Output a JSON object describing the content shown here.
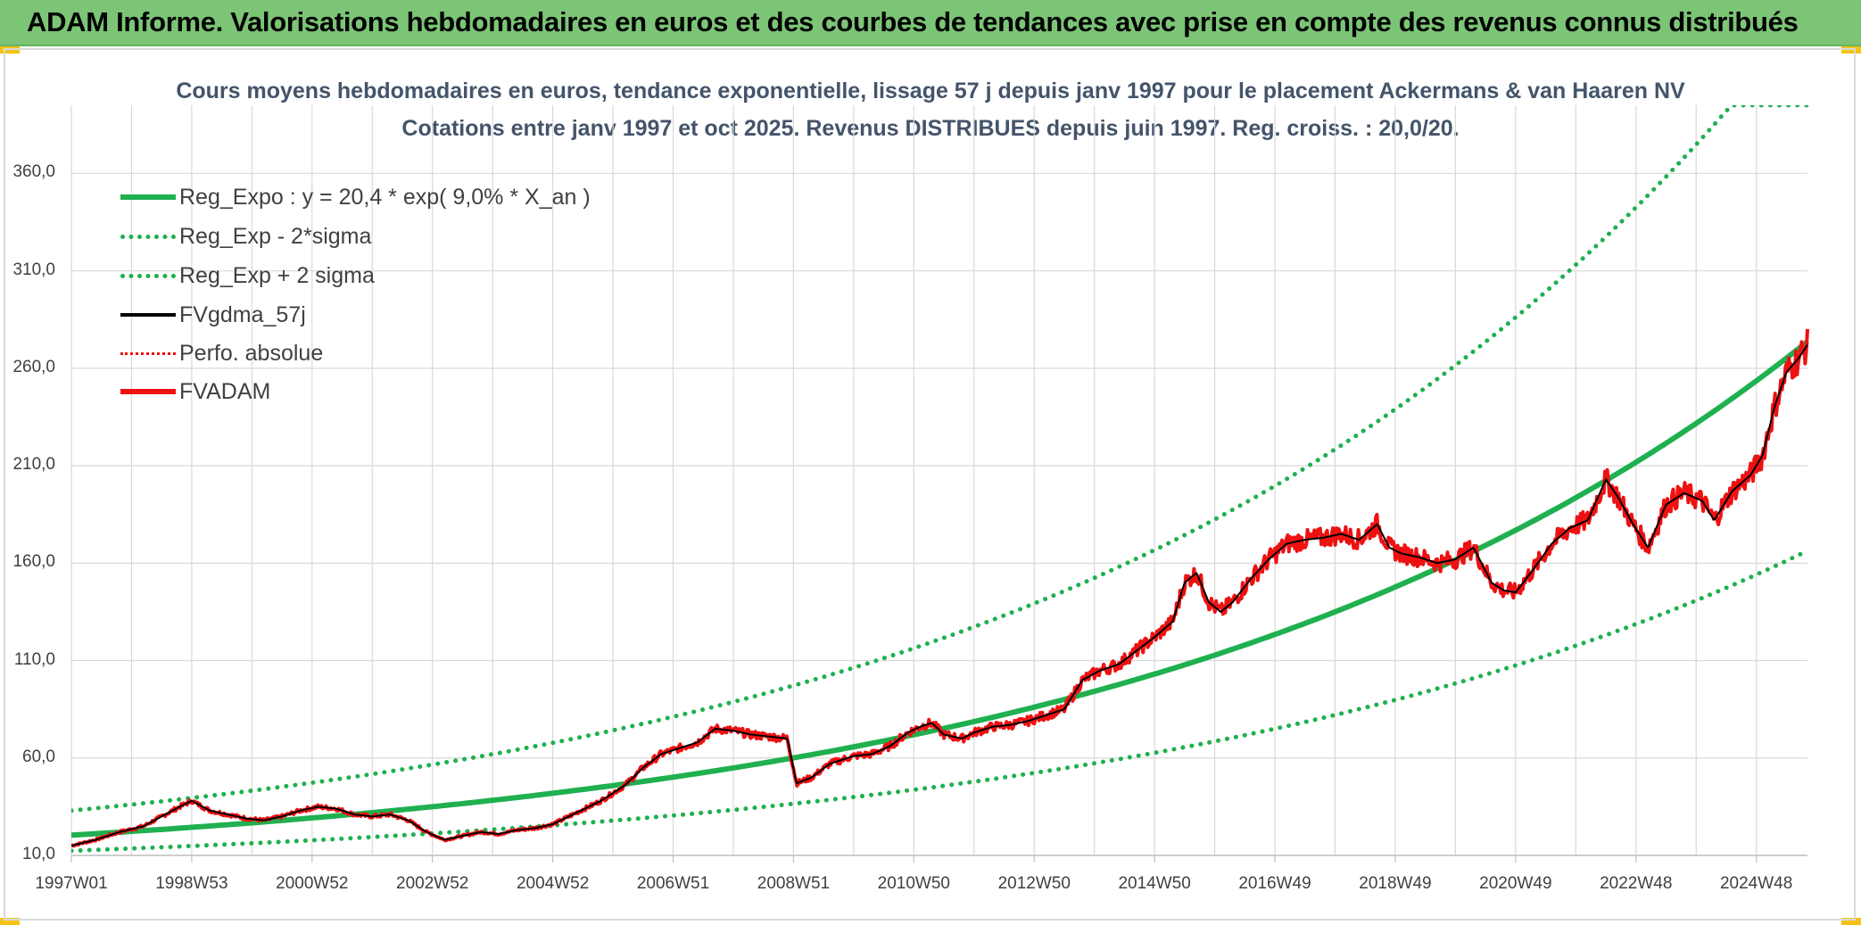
{
  "banner": {
    "title": "ADAM Informe. Valorisations hebdomadaires en euros et des courbes de tendances avec prise en compte des revenus connus distribués"
  },
  "colors": {
    "banner_bg": "#7cc576",
    "corner_accent": "#f2c314",
    "reg_expo": "#1fb04f",
    "fvadam": "#ee1111",
    "fvgdma": "#000000",
    "perfo": "#ee1111",
    "title_text": "#44546a"
  },
  "chart_data": {
    "type": "line",
    "title": "Cours moyens hebdomadaires en euros, tendance exponentielle, lissage 57 j depuis janv 1997 pour le placement Ackermans & van Haaren NV",
    "subtitle": "Cotations entre janv 1997 et oct 2025. Revenus DISTRIBUES depuis juin 1997. Reg. croiss. : 20,0/20.",
    "xlabel": "",
    "ylabel": "",
    "ylim": [
      10,
      395
    ],
    "xlim": [
      1997.0,
      2025.85
    ],
    "grid": true,
    "legend_position": "top-left",
    "y_ticks": [
      "10,0",
      "60,0",
      "110,0",
      "160,0",
      "210,0",
      "260,0",
      "310,0",
      "360,0"
    ],
    "x_ticks": [
      {
        "label": "1997W01",
        "x": 1997.0
      },
      {
        "label": "1998W53",
        "x": 1999.0
      },
      {
        "label": "2000W52",
        "x": 2001.0
      },
      {
        "label": "2002W52",
        "x": 2003.0
      },
      {
        "label": "2004W52",
        "x": 2005.0
      },
      {
        "label": "2006W51",
        "x": 2007.0
      },
      {
        "label": "2008W51",
        "x": 2009.0
      },
      {
        "label": "2010W50",
        "x": 2011.0
      },
      {
        "label": "2012W50",
        "x": 2013.0
      },
      {
        "label": "2014W50",
        "x": 2015.0
      },
      {
        "label": "2016W49",
        "x": 2017.0
      },
      {
        "label": "2018W49",
        "x": 2019.0
      },
      {
        "label": "2020W49",
        "x": 2021.0
      },
      {
        "label": "2022W48",
        "x": 2023.0
      },
      {
        "label": "2024W48",
        "x": 2025.0
      }
    ],
    "series": [
      {
        "name": "Reg_Expo : y = 20,4 * exp( 9,0% *  X_an )",
        "style": "solid",
        "width": 6,
        "color": "#1fb04f",
        "formula": "20.4*exp(0.09*(x-1997))"
      },
      {
        "name": "Reg_Exp - 2*sigma",
        "style": "dotted",
        "width": 5,
        "color": "#1fb04f",
        "formula": "12.4*exp(0.09*(x-1997))"
      },
      {
        "name": "Reg_Exp + 2 sigma",
        "style": "dotted",
        "width": 5,
        "color": "#1fb04f",
        "formula": "33.0*exp(0.09*(x-1997))"
      },
      {
        "name": "FVgdma_57j",
        "style": "solid",
        "width": 3,
        "color": "#000000"
      },
      {
        "name": "Perfo. absolue",
        "style": "dotted",
        "width": 3,
        "color": "#ee1111"
      },
      {
        "name": "FVADAM",
        "style": "solid",
        "width": 5,
        "color": "#ee1111",
        "x": [
          1997.0,
          1997.4,
          1997.8,
          1998.2,
          1998.5,
          1998.8,
          1999.0,
          1999.3,
          1999.6,
          1999.9,
          2000.2,
          2000.5,
          2000.8,
          2001.1,
          2001.4,
          2001.7,
          2002.0,
          2002.3,
          2002.6,
          2002.9,
          2003.2,
          2003.5,
          2003.8,
          2004.1,
          2004.4,
          2004.7,
          2005.0,
          2005.4,
          2005.8,
          2006.2,
          2006.5,
          2006.8,
          2007.1,
          2007.4,
          2007.7,
          2008.0,
          2008.3,
          2008.6,
          2008.9,
          2009.05,
          2009.3,
          2009.6,
          2010.0,
          2010.3,
          2010.6,
          2010.9,
          2011.1,
          2011.3,
          2011.5,
          2011.8,
          2012.0,
          2012.3,
          2012.6,
          2012.9,
          2013.2,
          2013.5,
          2013.8,
          2014.1,
          2014.4,
          2014.7,
          2015.0,
          2015.3,
          2015.5,
          2015.7,
          2015.9,
          2016.1,
          2016.3,
          2016.6,
          2016.9,
          2017.2,
          2017.5,
          2017.8,
          2018.1,
          2018.4,
          2018.7,
          2018.9,
          2019.1,
          2019.4,
          2019.7,
          2020.0,
          2020.3,
          2020.6,
          2020.8,
          2021.0,
          2021.3,
          2021.6,
          2021.9,
          2022.2,
          2022.5,
          2022.7,
          2022.95,
          2023.2,
          2023.5,
          2023.8,
          2024.1,
          2024.3,
          2024.6,
          2024.9,
          2025.1,
          2025.3,
          2025.5,
          2025.7,
          2025.85
        ],
        "y": [
          15,
          18,
          22,
          25,
          30,
          35,
          38,
          33,
          31,
          29,
          28,
          30,
          33,
          35,
          34,
          31,
          30,
          31,
          28,
          22,
          18,
          20,
          22,
          21,
          23,
          24,
          26,
          32,
          38,
          46,
          55,
          62,
          65,
          68,
          75,
          74,
          72,
          71,
          70,
          47,
          50,
          57,
          61,
          62,
          66,
          73,
          76,
          78,
          72,
          70,
          73,
          76,
          77,
          79,
          82,
          85,
          100,
          105,
          108,
          115,
          122,
          130,
          150,
          155,
          140,
          135,
          140,
          152,
          162,
          170,
          172,
          173,
          175,
          172,
          180,
          168,
          165,
          163,
          160,
          162,
          168,
          150,
          146,
          145,
          157,
          170,
          178,
          182,
          203,
          194,
          180,
          168,
          190,
          196,
          192,
          182,
          197,
          205,
          215,
          240,
          258,
          265,
          272
        ]
      }
    ]
  },
  "legend": {
    "items": [
      "Reg_Expo : y = 20,4 * exp( 9,0% *  X_an )",
      "Reg_Exp - 2*sigma",
      "Reg_Exp + 2 sigma",
      "FVgdma_57j",
      "Perfo. absolue",
      "FVADAM"
    ]
  }
}
